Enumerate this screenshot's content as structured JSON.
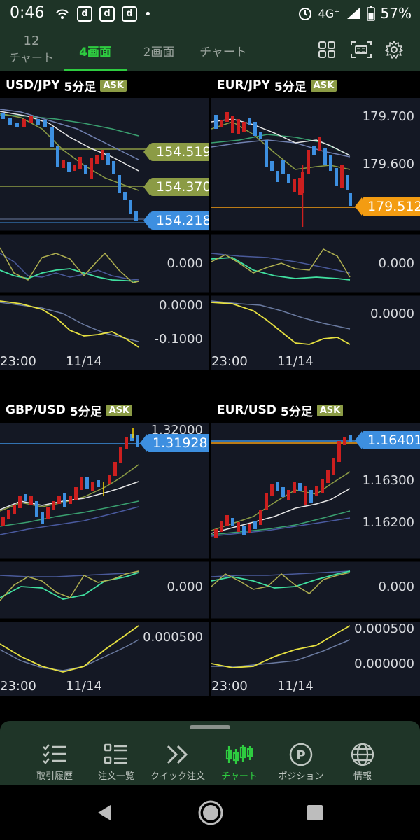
{
  "status_bar": {
    "time": "0:46",
    "network": "4G⁺",
    "battery": "57%",
    "notif_icons": [
      "d",
      "d",
      "d"
    ]
  },
  "tabs": [
    {
      "label_line1": "12",
      "label_line2": "チャート",
      "active": false
    },
    {
      "label": "4画面",
      "active": true
    },
    {
      "label": "2画面",
      "active": false
    },
    {
      "label": "チャート",
      "active": false
    }
  ],
  "panels": [
    {
      "pair": "USD/JPY",
      "timeframe": "5分足",
      "badge": "ASK",
      "price_labels": [
        "154.519",
        "154.370"
      ],
      "current_price": "154.218",
      "current_color": "#3d8fe0",
      "osc1_label": "0.000",
      "osc2_labels": [
        "0.0000",
        "-0.1000"
      ],
      "x_labels": [
        "23:00",
        "11/14"
      ]
    },
    {
      "pair": "EUR/JPY",
      "timeframe": "5分足",
      "badge": "ASK",
      "price_labels": [
        "179.700",
        "179.600"
      ],
      "current_price": "179.512",
      "current_color": "#f39c12",
      "osc1_label": "0.000",
      "osc2_labels": [
        "0.0000"
      ],
      "x_labels": [
        "23:00",
        "11/14"
      ]
    },
    {
      "pair": "GBP/USD",
      "timeframe": "5分足",
      "badge": "ASK",
      "price_labels": [
        "1.32000"
      ],
      "current_price": "1.31928",
      "current_color": "#3d8fe0",
      "osc1_label": "0.000",
      "osc2_labels": [
        "0.000500"
      ],
      "x_labels": [
        "23:00",
        "11/14"
      ]
    },
    {
      "pair": "EUR/USD",
      "timeframe": "5分足",
      "badge": "ASK",
      "price_labels": [
        "1.16300",
        "1.16200"
      ],
      "current_price": "1.16401",
      "current_color": "#3d8fe0",
      "osc1_label": "0.000",
      "osc2_labels": [
        "0.000500",
        "0.000000"
      ],
      "x_labels": [
        "23:00",
        "11/14"
      ]
    }
  ],
  "bottom_nav": [
    {
      "label": "取引履歴",
      "icon": "trade-history-icon",
      "active": false
    },
    {
      "label": "注文一覧",
      "icon": "order-list-icon",
      "active": false
    },
    {
      "label": "クイック注文",
      "icon": "quick-order-icon",
      "active": false
    },
    {
      "label": "チャート",
      "icon": "chart-icon",
      "active": true
    },
    {
      "label": "ポジション",
      "icon": "position-icon",
      "active": false
    },
    {
      "label": "情報",
      "icon": "globe-icon",
      "active": false
    }
  ],
  "colors": {
    "accent": "#2ecc40",
    "bar_bg": "#1e3427",
    "chart_bg": "#141824",
    "bull": "#cc1f1f",
    "bear": "#3d8fe0",
    "olive_line": "#8b9b45"
  }
}
